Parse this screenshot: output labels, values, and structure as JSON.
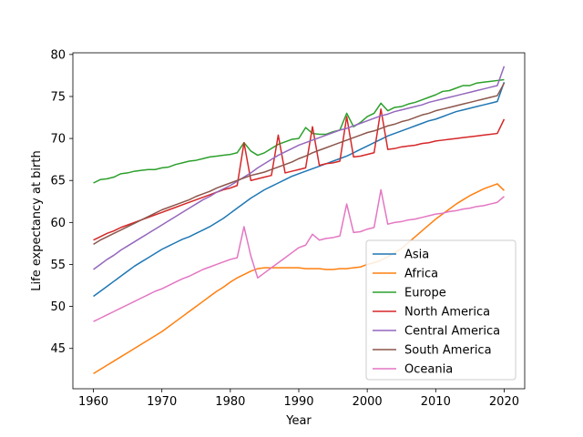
{
  "chart_data": {
    "type": "line",
    "xlabel": "Year",
    "ylabel": "Life expectancy at birth",
    "xlim": [
      1957,
      2023
    ],
    "ylim": [
      40.2,
      80.2
    ],
    "xticks": [
      1960,
      1970,
      1980,
      1990,
      2000,
      2010,
      2020
    ],
    "yticks": [
      45,
      50,
      55,
      60,
      65,
      70,
      75,
      80
    ],
    "grid": false,
    "legend_position": "lower right",
    "x": [
      1960,
      1961,
      1962,
      1963,
      1964,
      1965,
      1966,
      1967,
      1968,
      1969,
      1970,
      1971,
      1972,
      1973,
      1974,
      1975,
      1976,
      1977,
      1978,
      1979,
      1980,
      1981,
      1982,
      1983,
      1984,
      1985,
      1986,
      1987,
      1988,
      1989,
      1990,
      1991,
      1992,
      1993,
      1994,
      1995,
      1996,
      1997,
      1998,
      1999,
      2000,
      2001,
      2002,
      2003,
      2004,
      2005,
      2006,
      2007,
      2008,
      2009,
      2010,
      2011,
      2012,
      2013,
      2014,
      2015,
      2016,
      2017,
      2018,
      2019,
      2020
    ],
    "series": [
      {
        "name": "Asia",
        "color": "#1f77b4",
        "values": [
          51.2,
          51.8,
          52.4,
          53.0,
          53.6,
          54.2,
          54.8,
          55.3,
          55.8,
          56.3,
          56.8,
          57.2,
          57.6,
          58.0,
          58.3,
          58.7,
          59.1,
          59.5,
          60.0,
          60.5,
          61.1,
          61.7,
          62.3,
          62.9,
          63.4,
          63.9,
          64.3,
          64.7,
          65.1,
          65.5,
          65.8,
          66.1,
          66.4,
          66.7,
          67.0,
          67.3,
          67.6,
          67.9,
          68.3,
          68.7,
          69.1,
          69.5,
          69.9,
          70.3,
          70.6,
          70.9,
          71.2,
          71.5,
          71.8,
          72.1,
          72.3,
          72.6,
          72.9,
          73.2,
          73.4,
          73.6,
          73.8,
          74.0,
          74.2,
          74.4,
          76.7
        ]
      },
      {
        "name": "Africa",
        "color": "#ff7f0e",
        "values": [
          42.0,
          42.5,
          43.0,
          43.5,
          44.0,
          44.5,
          45.0,
          45.5,
          46.0,
          46.5,
          47.0,
          47.6,
          48.2,
          48.8,
          49.4,
          50.0,
          50.6,
          51.2,
          51.8,
          52.3,
          52.9,
          53.4,
          53.8,
          54.2,
          54.5,
          54.6,
          54.6,
          54.6,
          54.6,
          54.6,
          54.6,
          54.5,
          54.5,
          54.5,
          54.4,
          54.4,
          54.5,
          54.5,
          54.6,
          54.7,
          55.0,
          55.2,
          55.5,
          55.9,
          56.4,
          56.9,
          57.6,
          58.3,
          59.0,
          59.7,
          60.4,
          61.0,
          61.6,
          62.2,
          62.7,
          63.2,
          63.6,
          64.0,
          64.3,
          64.6,
          63.8
        ]
      },
      {
        "name": "Europe",
        "color": "#2ca02c",
        "values": [
          64.7,
          65.1,
          65.2,
          65.4,
          65.8,
          65.9,
          66.1,
          66.2,
          66.3,
          66.3,
          66.5,
          66.6,
          66.9,
          67.1,
          67.3,
          67.4,
          67.6,
          67.8,
          67.9,
          68.0,
          68.1,
          68.3,
          69.5,
          68.5,
          68.0,
          68.3,
          68.8,
          69.3,
          69.6,
          69.9,
          70.0,
          71.3,
          70.6,
          70.5,
          70.5,
          70.8,
          71.0,
          73.0,
          71.4,
          71.9,
          72.6,
          73.0,
          74.2,
          73.3,
          73.7,
          73.8,
          74.1,
          74.3,
          74.6,
          74.9,
          75.2,
          75.6,
          75.7,
          76.0,
          76.3,
          76.3,
          76.6,
          76.7,
          76.8,
          76.9,
          77.0
        ]
      },
      {
        "name": "North America",
        "color": "#d62728",
        "values": [
          57.9,
          58.3,
          58.7,
          59.0,
          59.4,
          59.7,
          60.0,
          60.3,
          60.6,
          60.9,
          61.2,
          61.5,
          61.8,
          62.1,
          62.4,
          62.7,
          63.0,
          63.3,
          63.6,
          63.9,
          64.1,
          64.4,
          69.5,
          65.0,
          65.2,
          65.4,
          65.6,
          70.4,
          65.9,
          66.1,
          66.3,
          66.5,
          71.4,
          66.8,
          67.0,
          67.1,
          67.3,
          72.6,
          67.8,
          67.9,
          68.1,
          68.3,
          73.5,
          68.7,
          68.8,
          69.0,
          69.1,
          69.2,
          69.4,
          69.5,
          69.7,
          69.8,
          69.9,
          70.0,
          70.1,
          70.2,
          70.3,
          70.4,
          70.5,
          70.6,
          72.3
        ]
      },
      {
        "name": "Central America",
        "color": "#9467bd",
        "values": [
          54.4,
          55.0,
          55.6,
          56.1,
          56.7,
          57.2,
          57.7,
          58.2,
          58.7,
          59.2,
          59.7,
          60.2,
          60.7,
          61.2,
          61.7,
          62.2,
          62.7,
          63.1,
          63.6,
          64.0,
          64.4,
          64.9,
          65.4,
          65.9,
          66.5,
          67.0,
          67.5,
          68.0,
          68.4,
          68.8,
          69.2,
          69.5,
          69.8,
          70.1,
          70.4,
          70.7,
          71.0,
          71.2,
          71.5,
          71.8,
          72.1,
          72.4,
          72.7,
          72.9,
          73.2,
          73.4,
          73.6,
          73.8,
          74.0,
          74.3,
          74.5,
          74.7,
          74.9,
          75.1,
          75.3,
          75.5,
          75.7,
          75.9,
          76.1,
          76.3,
          78.6
        ]
      },
      {
        "name": "South America",
        "color": "#8c564b",
        "values": [
          57.4,
          57.9,
          58.3,
          58.7,
          59.1,
          59.5,
          59.9,
          60.3,
          60.7,
          61.1,
          61.5,
          61.8,
          62.1,
          62.4,
          62.7,
          63.1,
          63.4,
          63.7,
          64.1,
          64.4,
          64.7,
          65.0,
          65.3,
          65.6,
          65.8,
          66.0,
          66.3,
          66.6,
          66.9,
          67.2,
          67.6,
          67.9,
          68.3,
          68.6,
          68.9,
          69.2,
          69.5,
          69.8,
          70.1,
          70.4,
          70.7,
          70.9,
          71.2,
          71.5,
          71.7,
          72.0,
          72.2,
          72.5,
          72.8,
          73.0,
          73.3,
          73.5,
          73.7,
          73.9,
          74.1,
          74.3,
          74.5,
          74.7,
          74.9,
          75.1,
          76.6
        ]
      },
      {
        "name": "Oceania",
        "color": "#e377c2",
        "values": [
          48.2,
          48.6,
          49.0,
          49.4,
          49.8,
          50.2,
          50.6,
          51.0,
          51.4,
          51.8,
          52.1,
          52.5,
          52.9,
          53.3,
          53.6,
          54.0,
          54.4,
          54.7,
          55.0,
          55.3,
          55.6,
          55.8,
          59.5,
          56.0,
          53.4,
          54.0,
          54.6,
          55.2,
          55.8,
          56.4,
          57.0,
          57.3,
          58.6,
          57.9,
          58.1,
          58.2,
          58.4,
          62.2,
          58.8,
          58.9,
          59.2,
          59.4,
          63.9,
          59.8,
          60.0,
          60.1,
          60.3,
          60.4,
          60.6,
          60.8,
          61.0,
          61.1,
          61.3,
          61.4,
          61.6,
          61.7,
          61.9,
          62.0,
          62.2,
          62.4,
          63.1
        ]
      }
    ]
  }
}
